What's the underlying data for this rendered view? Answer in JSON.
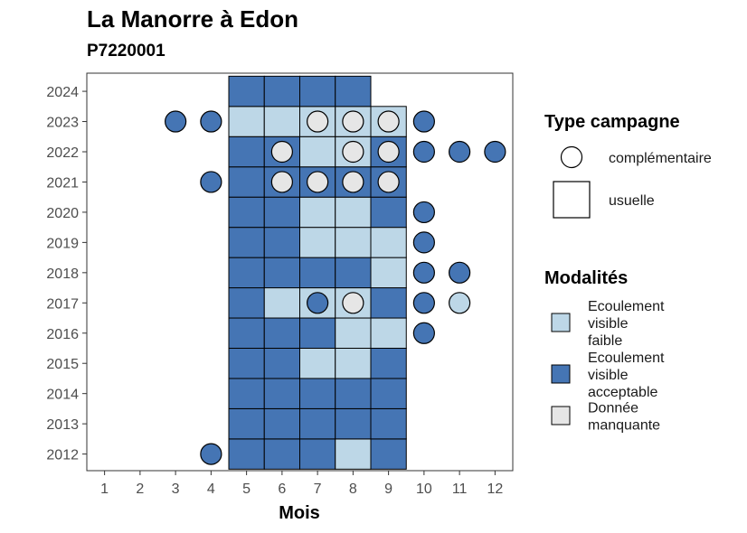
{
  "chart_data": {
    "type": "heatmap",
    "title": "La Manorre à Edon",
    "subtitle": "P7220001",
    "xlabel": "Mois",
    "ylabel": "",
    "x_ticks": [
      1,
      2,
      3,
      4,
      5,
      6,
      7,
      8,
      9,
      10,
      11,
      12
    ],
    "y_ticks": [
      2012,
      2013,
      2014,
      2015,
      2016,
      2017,
      2018,
      2019,
      2020,
      2021,
      2022,
      2023,
      2024
    ],
    "xlim": [
      0.5,
      12.5
    ],
    "ylim": [
      2011.45,
      2024.6
    ],
    "grid": false,
    "legend_placement": "right",
    "modalities": [
      {
        "key": "faible",
        "label_lines": [
          "Ecoulement",
          "visible",
          "faible"
        ],
        "color": "#bdd7e7"
      },
      {
        "key": "acceptable",
        "label_lines": [
          "Ecoulement",
          "visible",
          "acceptable"
        ],
        "color": "#4575b4"
      },
      {
        "key": "manquante",
        "label_lines": [
          "Donnée",
          "manquante"
        ],
        "color": "#e6e6e6"
      }
    ],
    "campaign_types": {
      "title": "Type campagne",
      "items": [
        {
          "key": "complementaire",
          "label": "complémentaire",
          "shape": "circle"
        },
        {
          "key": "usuelle",
          "label": "usuelle",
          "shape": "square"
        }
      ]
    },
    "modalities_title": "Modalités",
    "usuelle": [
      {
        "year": 2012,
        "month": 5,
        "m": "acceptable"
      },
      {
        "year": 2012,
        "month": 6,
        "m": "acceptable"
      },
      {
        "year": 2012,
        "month": 7,
        "m": "acceptable"
      },
      {
        "year": 2012,
        "month": 8,
        "m": "faible"
      },
      {
        "year": 2012,
        "month": 9,
        "m": "acceptable"
      },
      {
        "year": 2013,
        "month": 5,
        "m": "acceptable"
      },
      {
        "year": 2013,
        "month": 6,
        "m": "acceptable"
      },
      {
        "year": 2013,
        "month": 7,
        "m": "acceptable"
      },
      {
        "year": 2013,
        "month": 8,
        "m": "acceptable"
      },
      {
        "year": 2013,
        "month": 9,
        "m": "acceptable"
      },
      {
        "year": 2014,
        "month": 5,
        "m": "acceptable"
      },
      {
        "year": 2014,
        "month": 6,
        "m": "acceptable"
      },
      {
        "year": 2014,
        "month": 7,
        "m": "acceptable"
      },
      {
        "year": 2014,
        "month": 8,
        "m": "acceptable"
      },
      {
        "year": 2014,
        "month": 9,
        "m": "acceptable"
      },
      {
        "year": 2015,
        "month": 5,
        "m": "acceptable"
      },
      {
        "year": 2015,
        "month": 6,
        "m": "acceptable"
      },
      {
        "year": 2015,
        "month": 7,
        "m": "faible"
      },
      {
        "year": 2015,
        "month": 8,
        "m": "faible"
      },
      {
        "year": 2015,
        "month": 9,
        "m": "acceptable"
      },
      {
        "year": 2016,
        "month": 5,
        "m": "acceptable"
      },
      {
        "year": 2016,
        "month": 6,
        "m": "acceptable"
      },
      {
        "year": 2016,
        "month": 7,
        "m": "acceptable"
      },
      {
        "year": 2016,
        "month": 8,
        "m": "faible"
      },
      {
        "year": 2016,
        "month": 9,
        "m": "faible"
      },
      {
        "year": 2017,
        "month": 5,
        "m": "acceptable"
      },
      {
        "year": 2017,
        "month": 6,
        "m": "faible"
      },
      {
        "year": 2017,
        "month": 7,
        "m": "faible"
      },
      {
        "year": 2017,
        "month": 8,
        "m": "faible"
      },
      {
        "year": 2017,
        "month": 9,
        "m": "acceptable"
      },
      {
        "year": 2018,
        "month": 5,
        "m": "acceptable"
      },
      {
        "year": 2018,
        "month": 6,
        "m": "acceptable"
      },
      {
        "year": 2018,
        "month": 7,
        "m": "acceptable"
      },
      {
        "year": 2018,
        "month": 8,
        "m": "acceptable"
      },
      {
        "year": 2018,
        "month": 9,
        "m": "faible"
      },
      {
        "year": 2019,
        "month": 5,
        "m": "acceptable"
      },
      {
        "year": 2019,
        "month": 6,
        "m": "acceptable"
      },
      {
        "year": 2019,
        "month": 7,
        "m": "faible"
      },
      {
        "year": 2019,
        "month": 8,
        "m": "faible"
      },
      {
        "year": 2019,
        "month": 9,
        "m": "faible"
      },
      {
        "year": 2020,
        "month": 5,
        "m": "acceptable"
      },
      {
        "year": 2020,
        "month": 6,
        "m": "acceptable"
      },
      {
        "year": 2020,
        "month": 7,
        "m": "faible"
      },
      {
        "year": 2020,
        "month": 8,
        "m": "faible"
      },
      {
        "year": 2020,
        "month": 9,
        "m": "acceptable"
      },
      {
        "year": 2021,
        "month": 5,
        "m": "acceptable"
      },
      {
        "year": 2021,
        "month": 6,
        "m": "acceptable"
      },
      {
        "year": 2021,
        "month": 7,
        "m": "acceptable"
      },
      {
        "year": 2021,
        "month": 8,
        "m": "acceptable"
      },
      {
        "year": 2021,
        "month": 9,
        "m": "acceptable"
      },
      {
        "year": 2022,
        "month": 5,
        "m": "acceptable"
      },
      {
        "year": 2022,
        "month": 6,
        "m": "acceptable"
      },
      {
        "year": 2022,
        "month": 7,
        "m": "faible"
      },
      {
        "year": 2022,
        "month": 8,
        "m": "faible"
      },
      {
        "year": 2022,
        "month": 9,
        "m": "acceptable"
      },
      {
        "year": 2023,
        "month": 5,
        "m": "faible"
      },
      {
        "year": 2023,
        "month": 6,
        "m": "faible"
      },
      {
        "year": 2023,
        "month": 7,
        "m": "faible"
      },
      {
        "year": 2023,
        "month": 8,
        "m": "faible"
      },
      {
        "year": 2023,
        "month": 9,
        "m": "faible"
      },
      {
        "year": 2024,
        "month": 5,
        "m": "acceptable"
      },
      {
        "year": 2024,
        "month": 6,
        "m": "acceptable"
      },
      {
        "year": 2024,
        "month": 7,
        "m": "acceptable"
      },
      {
        "year": 2024,
        "month": 8,
        "m": "acceptable"
      }
    ],
    "complementaire": [
      {
        "year": 2012,
        "month": 4,
        "m": "acceptable"
      },
      {
        "year": 2016,
        "month": 10,
        "m": "acceptable"
      },
      {
        "year": 2017,
        "month": 7,
        "m": "acceptable"
      },
      {
        "year": 2017,
        "month": 8,
        "m": "manquante"
      },
      {
        "year": 2017,
        "month": 10,
        "m": "acceptable"
      },
      {
        "year": 2017,
        "month": 11,
        "m": "faible"
      },
      {
        "year": 2018,
        "month": 10,
        "m": "acceptable"
      },
      {
        "year": 2018,
        "month": 11,
        "m": "acceptable"
      },
      {
        "year": 2019,
        "month": 10,
        "m": "acceptable"
      },
      {
        "year": 2020,
        "month": 10,
        "m": "acceptable"
      },
      {
        "year": 2021,
        "month": 4,
        "m": "acceptable"
      },
      {
        "year": 2021,
        "month": 6,
        "m": "manquante"
      },
      {
        "year": 2021,
        "month": 7,
        "m": "manquante"
      },
      {
        "year": 2021,
        "month": 8,
        "m": "manquante"
      },
      {
        "year": 2021,
        "month": 9,
        "m": "manquante"
      },
      {
        "year": 2022,
        "month": 6,
        "m": "manquante"
      },
      {
        "year": 2022,
        "month": 8,
        "m": "manquante"
      },
      {
        "year": 2022,
        "month": 9,
        "m": "manquante"
      },
      {
        "year": 2022,
        "month": 10,
        "m": "acceptable"
      },
      {
        "year": 2022,
        "month": 11,
        "m": "acceptable"
      },
      {
        "year": 2022,
        "month": 12,
        "m": "acceptable"
      },
      {
        "year": 2023,
        "month": 3,
        "m": "acceptable"
      },
      {
        "year": 2023,
        "month": 4,
        "m": "acceptable"
      },
      {
        "year": 2023,
        "month": 7,
        "m": "manquante"
      },
      {
        "year": 2023,
        "month": 8,
        "m": "manquante"
      },
      {
        "year": 2023,
        "month": 9,
        "m": "manquante"
      },
      {
        "year": 2023,
        "month": 10,
        "m": "acceptable"
      }
    ]
  }
}
